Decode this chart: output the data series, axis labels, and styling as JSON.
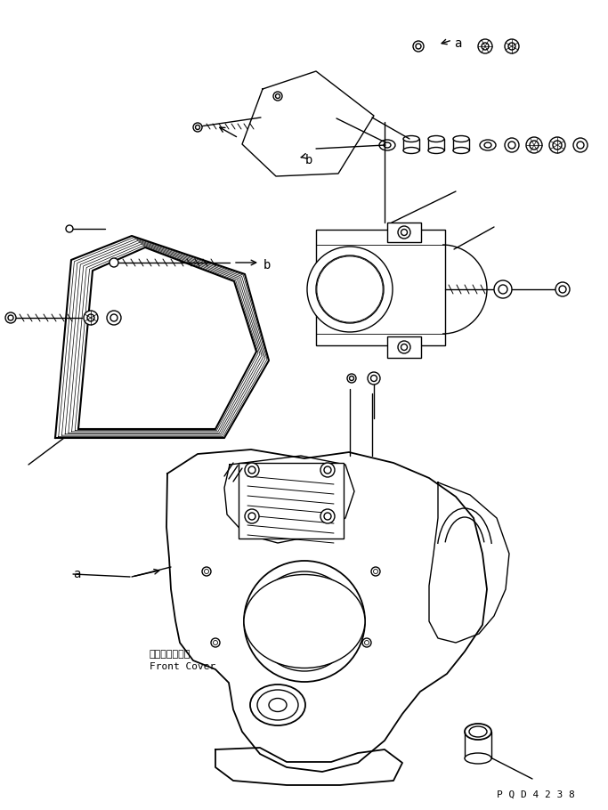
{
  "title": "",
  "background_color": "#ffffff",
  "line_color": "#000000",
  "line_width": 1.0,
  "front_cover_jp": "フロントカバー",
  "front_cover_en": "Front Cover",
  "part_number": "P Q D 4 2 3 8",
  "fig_width": 6.83,
  "fig_height": 9.1,
  "dpi": 100
}
